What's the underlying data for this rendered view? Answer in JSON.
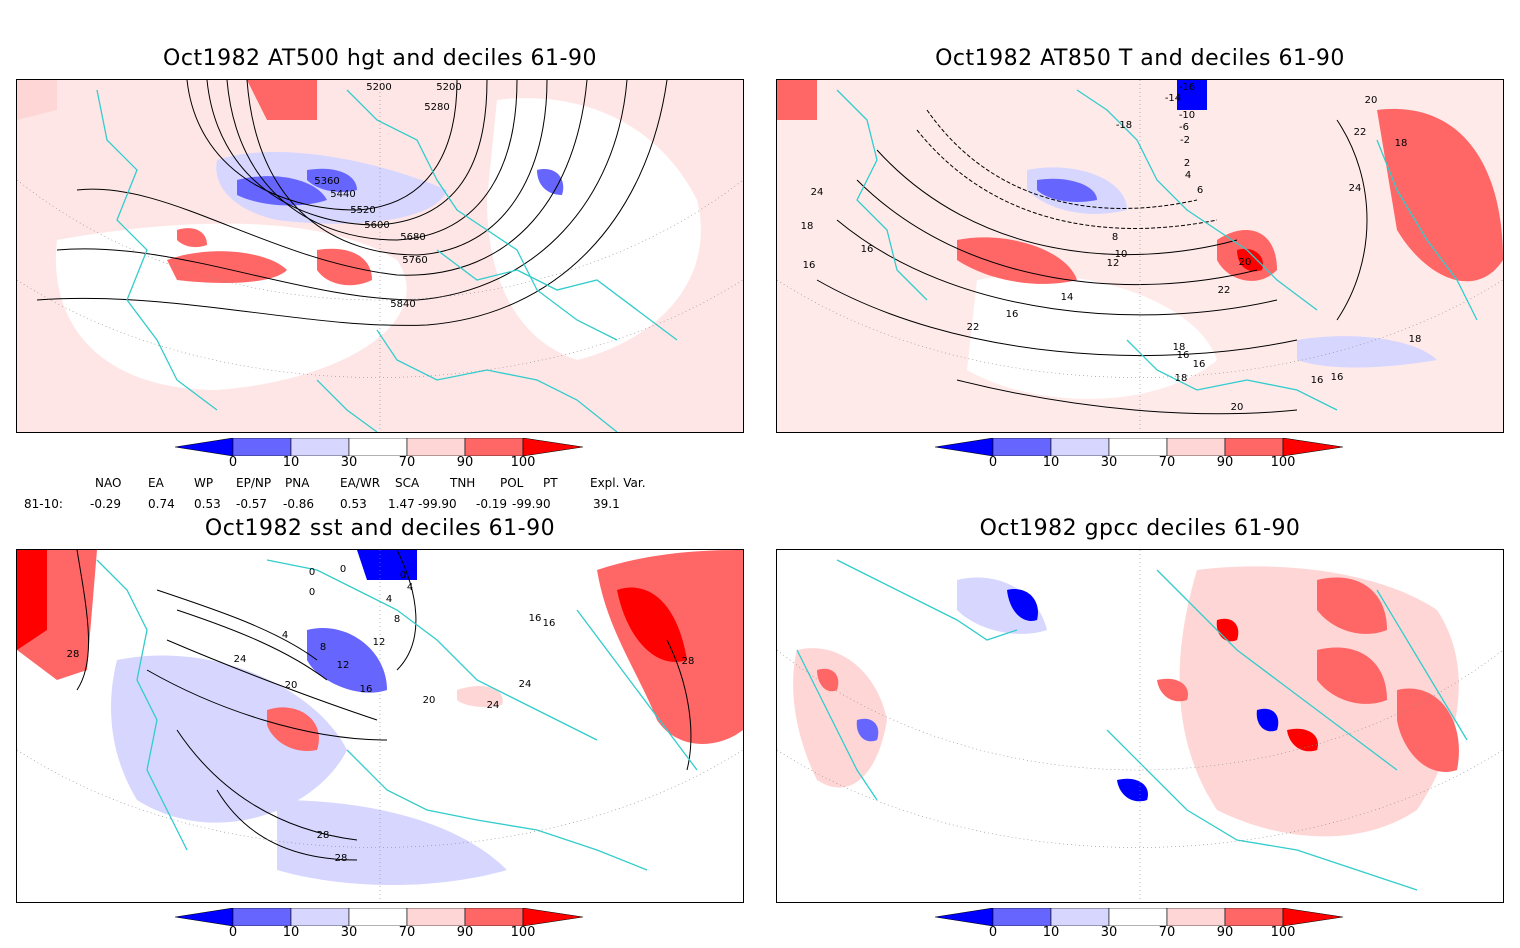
{
  "panels": [
    {
      "title": "Oct1982 AT500 hgt and deciles 61-90",
      "contour_labels": [
        "5200",
        "5200",
        "5280",
        "5360",
        "5440",
        "5520",
        "5600",
        "5680",
        "5760",
        "5840"
      ]
    },
    {
      "title": "Oct1982 AT850 T and deciles 61-90",
      "contour_labels": [
        "-16",
        "-14",
        "-18",
        "-10",
        "-6",
        "-2",
        "2",
        "4",
        "6",
        "8",
        "10",
        "12",
        "14",
        "16",
        "16",
        "16",
        "18",
        "18",
        "20",
        "22",
        "24",
        "20",
        "22",
        "18",
        "16",
        "16",
        "18",
        "20",
        "22",
        "24",
        "18",
        "16",
        "16"
      ]
    },
    {
      "title": "Oct1982 sst and deciles 61-90",
      "contour_labels": [
        "0",
        "0",
        "0",
        "0",
        "4",
        "4",
        "8",
        "12",
        "16",
        "20",
        "24",
        "28",
        "28",
        "28",
        "20",
        "24",
        "24",
        "16",
        "16",
        "28",
        "12",
        "8",
        "4"
      ]
    },
    {
      "title": "Oct1982 gpcc deciles 61-90",
      "contour_labels": []
    }
  ],
  "colorbar": {
    "labels": [
      "0",
      "10",
      "30",
      "70",
      "90",
      "100"
    ],
    "colors": [
      "#0000ff",
      "#6666ff",
      "#d6d6ff",
      "#ffffff",
      "#ffd6d6",
      "#ff6666",
      "#ff0000"
    ]
  },
  "teleconnections": {
    "row_label": "81-10:",
    "headers": [
      "NAO",
      "EA",
      "WP",
      "EP/NP",
      "PNA",
      "EA/WR",
      "SCA",
      "TNH",
      "POL",
      "PT",
      "Expl. Var."
    ],
    "values": [
      "-0.29",
      "0.74",
      "0.53",
      "-0.57",
      "-0.86",
      "0.53",
      "1.47",
      "-99.90",
      "-0.19",
      "-99.90",
      "39.1"
    ]
  },
  "colors": {
    "coast": "#33cccc",
    "strong_pos": "#ff6666",
    "weak_pos": "#ffd6d6",
    "strong_neg": "#6666ff",
    "weak_neg": "#d6d6ff",
    "extreme_pos": "#ff0000",
    "extreme_neg": "#0000ff"
  }
}
